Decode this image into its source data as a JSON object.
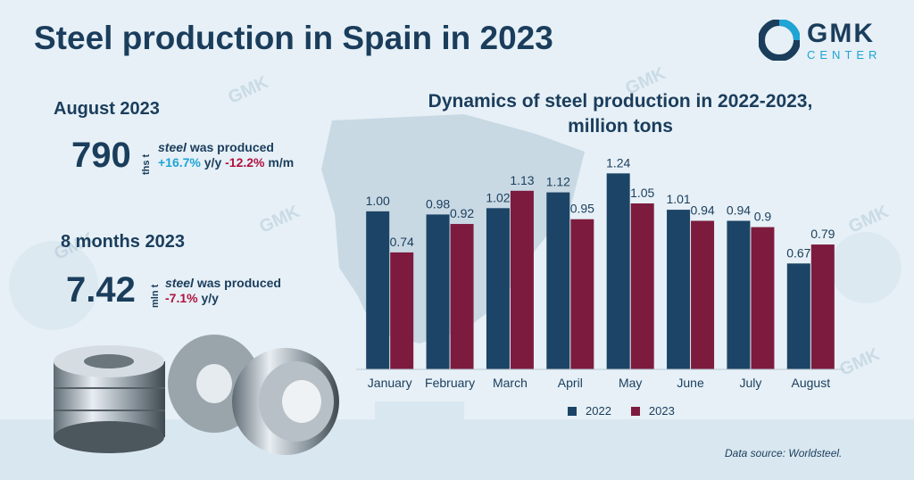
{
  "page": {
    "title": "Steel production in Spain in 2023",
    "logo": {
      "main": "GMK",
      "sub": "CENTER"
    },
    "watermark": "GMK"
  },
  "stats": {
    "month": {
      "heading": "August 2023",
      "value": "790",
      "unit": "ths t",
      "steel_word": "steel",
      "produced": "was produced",
      "yoy": "+16.7%",
      "yoy_suffix": "y/y",
      "mom": "-12.2%",
      "mom_suffix": "m/m"
    },
    "ytd": {
      "heading": "8 months 2023",
      "value": "7.42",
      "unit": "mln t",
      "steel_word": "steel",
      "produced": "was produced",
      "yoy": "-7.1%",
      "yoy_suffix": "y/y"
    }
  },
  "chart_data": {
    "type": "bar",
    "title": "Dynamics of steel production in 2022-2023, million tons",
    "title_line1": "Dynamics of steel production in 2022-2023,",
    "title_line2": "million tons",
    "categories": [
      "January",
      "February",
      "March",
      "April",
      "May",
      "June",
      "July",
      "August"
    ],
    "series": [
      {
        "name": "2022",
        "color": "#1c4466",
        "values": [
          1.0,
          0.98,
          1.02,
          1.12,
          1.24,
          1.01,
          0.94,
          0.67
        ],
        "labels": [
          "1.00",
          "0.98",
          "1.02",
          "1.12",
          "1.24",
          "1.01",
          "0.94",
          "0.67"
        ]
      },
      {
        "name": "2023",
        "color": "#7d1b3e",
        "values": [
          0.74,
          0.92,
          1.13,
          0.95,
          1.05,
          0.94,
          0.9,
          0.79
        ],
        "labels": [
          "0.74",
          "0.92",
          "1.13",
          "0.95",
          "1.05",
          "0.94",
          "0.9",
          "0.79"
        ]
      }
    ],
    "ylim": [
      0,
      1.4
    ],
    "grid": false,
    "legend_position": "bottom"
  },
  "source": "Data source:  Worldsteel."
}
